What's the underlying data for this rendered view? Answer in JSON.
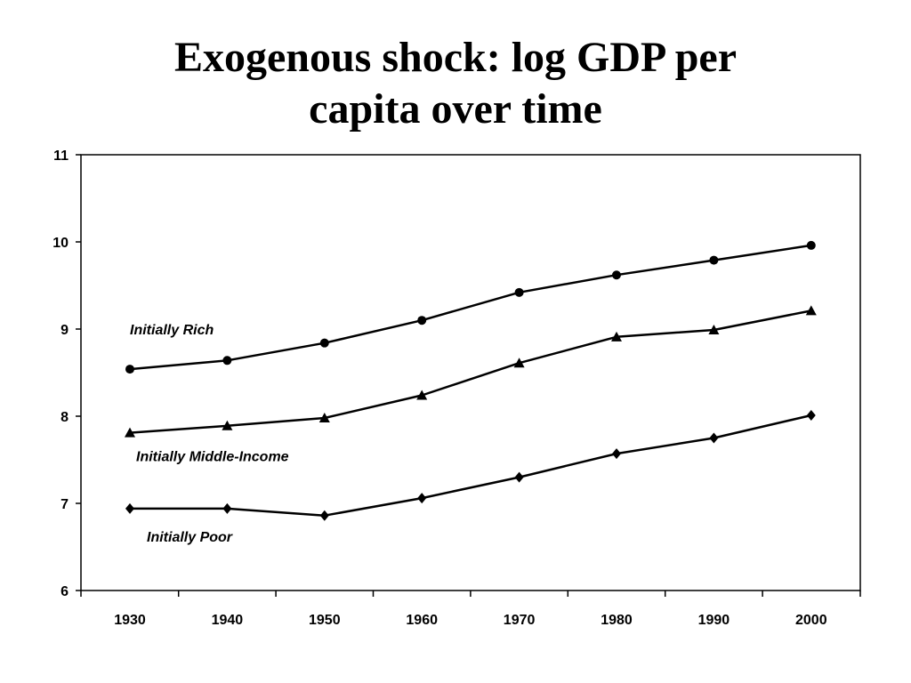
{
  "slide": {
    "title_line1": "Exogenous shock: log GDP per",
    "title_line2": "capita over time"
  },
  "chart_data": {
    "type": "line",
    "title": "",
    "xlabel": "",
    "ylabel": "",
    "x": [
      1930,
      1940,
      1950,
      1960,
      1970,
      1980,
      1990,
      2000
    ],
    "x_tick_labels": [
      "1930",
      "1940",
      "1950",
      "1960",
      "1970",
      "1980",
      "1990",
      "2000"
    ],
    "ylim": [
      6,
      11
    ],
    "y_ticks": [
      6,
      7,
      8,
      9,
      10,
      11
    ],
    "y_tick_labels": [
      "6",
      "7",
      "8",
      "9",
      "10",
      "11"
    ],
    "grid": false,
    "legend": "none (series labeled inline)",
    "series": [
      {
        "name": "Initially Rich",
        "marker": "circle",
        "values": [
          8.54,
          8.64,
          8.84,
          9.1,
          9.42,
          9.62,
          9.79,
          9.96
        ]
      },
      {
        "name": "Initially Middle-Income",
        "marker": "triangle",
        "values": [
          7.81,
          7.89,
          7.98,
          8.24,
          8.61,
          8.91,
          8.99,
          9.21
        ]
      },
      {
        "name": "Initially Poor",
        "marker": "diamond",
        "values": [
          6.94,
          6.94,
          6.86,
          7.06,
          7.3,
          7.57,
          7.75,
          8.01
        ]
      }
    ],
    "colors": {
      "line": "#000000",
      "axis": "#000000",
      "background": "#ffffff"
    }
  }
}
